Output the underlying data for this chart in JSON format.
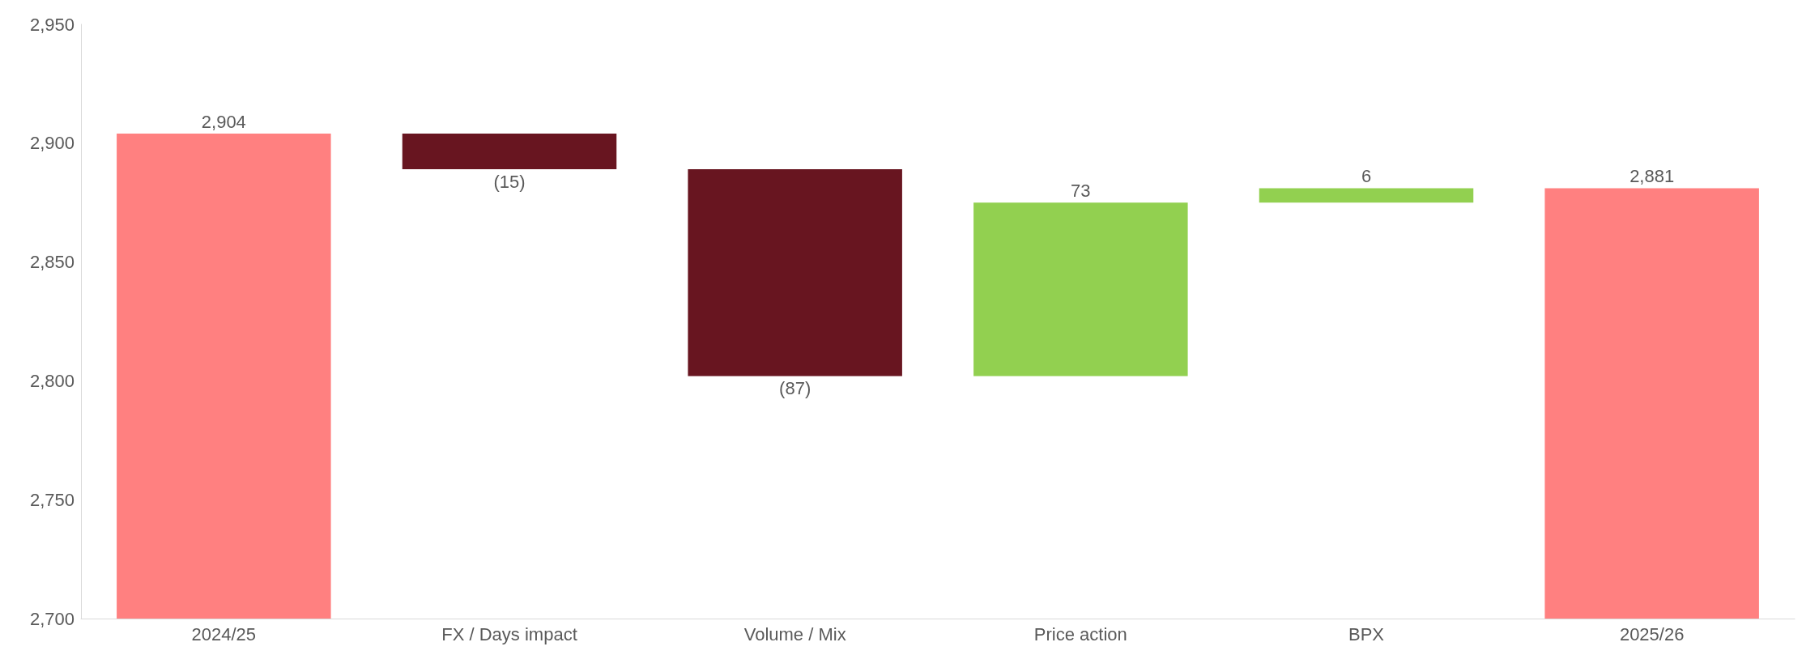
{
  "chart_data": {
    "type": "bar",
    "categories": [
      "2024/25",
      "FX / Days impact",
      "Volume / Mix",
      "Price action",
      "BPX",
      "2025/26"
    ],
    "values": [
      2904,
      -15,
      -87,
      73,
      6,
      2881
    ],
    "base": [
      0,
      2904,
      2889,
      2802,
      2875,
      0
    ],
    "colors": [
      "#ff8080",
      "#681520",
      "#681520",
      "#92d050",
      "#92d050",
      "#ff8080"
    ],
    "value_labels": [
      "2,904",
      "(15)",
      "(87)",
      "73",
      "6",
      "2,881"
    ],
    "ylim": [
      2700,
      2950
    ],
    "yticks": [
      {
        "value": 2700,
        "label": "2,700"
      },
      {
        "value": 2750,
        "label": "2,750"
      },
      {
        "value": 2800,
        "label": "2,800"
      },
      {
        "value": 2850,
        "label": "2,850"
      },
      {
        "value": 2900,
        "label": "2,900"
      },
      {
        "value": 2950,
        "label": "2,950"
      }
    ],
    "grid": false
  }
}
